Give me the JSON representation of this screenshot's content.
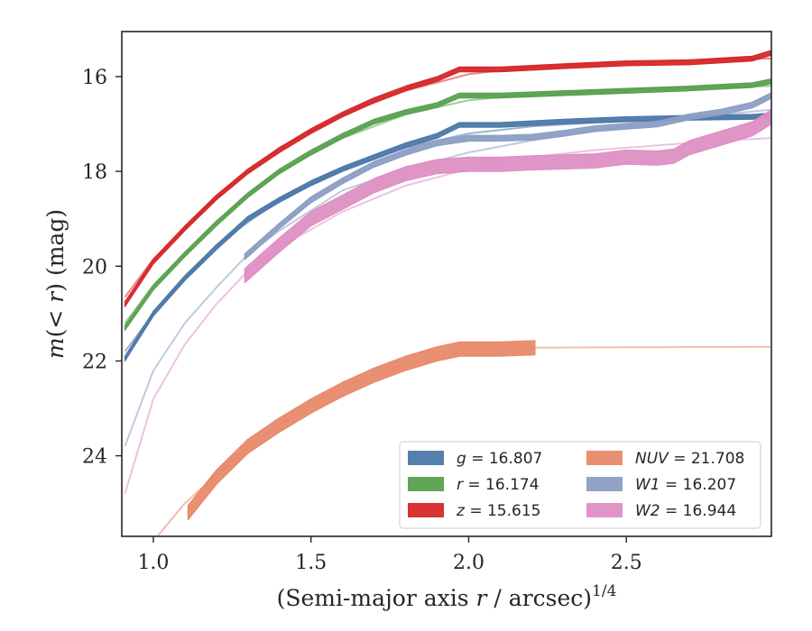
{
  "chart_data": {
    "type": "line",
    "xlabel": "(Semi-major axis r / arcsec)^1/4",
    "ylabel": "m(< r) (mag)",
    "xlim": [
      0.9,
      2.96
    ],
    "ylim": [
      25.7,
      15.05
    ],
    "y_inverted": true,
    "xticks": [
      1.0,
      1.5,
      2.0,
      2.5
    ],
    "xtick_labels": [
      "1.0",
      "1.5",
      "2.0",
      "2.5"
    ],
    "yticks": [
      16,
      18,
      20,
      22,
      24
    ],
    "ytick_labels": [
      "16",
      "18",
      "20",
      "22",
      "24"
    ],
    "grid": false,
    "legend_position": "lower-right",
    "series": [
      {
        "name": "g = 16.807",
        "legend_band": "g",
        "legend_value": "16.807",
        "color": "#4c78a8",
        "band_width": 0.05,
        "x": [
          0.91,
          1.0,
          1.1,
          1.2,
          1.3,
          1.4,
          1.5,
          1.6,
          1.7,
          1.8,
          1.9,
          1.97,
          2.1,
          2.3,
          2.5,
          2.7,
          2.9,
          2.96
        ],
        "y": [
          21.95,
          21.0,
          20.25,
          19.6,
          19.0,
          18.6,
          18.25,
          17.95,
          17.7,
          17.45,
          17.25,
          17.02,
          17.02,
          16.95,
          16.9,
          16.87,
          16.85,
          16.82
        ],
        "model_x": [
          0.91,
          1.0,
          1.2,
          1.4,
          1.6,
          1.8,
          2.0,
          2.2,
          2.4,
          2.6,
          2.8,
          2.96
        ],
        "model_y": [
          21.8,
          21.0,
          19.55,
          18.6,
          17.95,
          17.5,
          17.2,
          17.05,
          16.97,
          16.92,
          16.89,
          16.85
        ]
      },
      {
        "name": "r = 16.174",
        "legend_band": "r",
        "legend_value": "16.174",
        "color": "#59a14f",
        "band_width": 0.05,
        "x": [
          0.91,
          1.0,
          1.1,
          1.2,
          1.3,
          1.4,
          1.5,
          1.6,
          1.7,
          1.8,
          1.9,
          1.97,
          2.1,
          2.3,
          2.5,
          2.7,
          2.9,
          2.96
        ],
        "y": [
          21.3,
          20.45,
          19.75,
          19.1,
          18.5,
          18.0,
          17.6,
          17.25,
          16.95,
          16.75,
          16.6,
          16.4,
          16.4,
          16.35,
          16.3,
          16.25,
          16.18,
          16.1
        ],
        "model_x": [
          0.91,
          1.0,
          1.2,
          1.4,
          1.6,
          1.8,
          2.0,
          2.2,
          2.4,
          2.6,
          2.8,
          2.96
        ],
        "model_y": [
          21.2,
          20.4,
          19.05,
          18.0,
          17.3,
          16.8,
          16.5,
          16.38,
          16.3,
          16.25,
          16.22,
          16.2
        ]
      },
      {
        "name": "z = 15.615",
        "legend_band": "z",
        "legend_value": "15.615",
        "color": "#d62728",
        "band_width": 0.05,
        "x": [
          0.91,
          1.0,
          1.1,
          1.2,
          1.3,
          1.4,
          1.5,
          1.6,
          1.7,
          1.8,
          1.9,
          1.97,
          2.1,
          2.3,
          2.5,
          2.7,
          2.9,
          2.96
        ],
        "y": [
          20.8,
          19.9,
          19.2,
          18.55,
          18.0,
          17.55,
          17.15,
          16.8,
          16.5,
          16.25,
          16.05,
          15.85,
          15.85,
          15.78,
          15.72,
          15.7,
          15.62,
          15.5
        ],
        "model_x": [
          0.91,
          1.0,
          1.2,
          1.4,
          1.6,
          1.8,
          2.0,
          2.2,
          2.4,
          2.6,
          2.8,
          2.96
        ],
        "model_y": [
          20.65,
          19.85,
          18.55,
          17.5,
          16.8,
          16.3,
          15.95,
          15.8,
          15.72,
          15.67,
          15.64,
          15.62
        ]
      },
      {
        "name": "NUV = 21.708",
        "legend_band": "NUV",
        "legend_value": "21.708",
        "color": "#e8896a",
        "band_width": 0.15,
        "x": [
          1.11,
          1.2,
          1.3,
          1.4,
          1.5,
          1.6,
          1.7,
          1.8,
          1.9,
          1.97,
          2.1,
          2.21
        ],
        "y": [
          25.2,
          24.45,
          23.8,
          23.35,
          22.95,
          22.6,
          22.3,
          22.05,
          21.85,
          21.75,
          21.75,
          21.72
        ],
        "model_x": [
          1.0,
          1.1,
          1.2,
          1.3,
          1.4,
          1.5,
          1.6,
          1.8,
          2.0,
          2.2,
          2.5,
          2.96
        ],
        "model_y": [
          25.8,
          25.0,
          24.4,
          23.8,
          23.35,
          22.9,
          22.55,
          22.05,
          21.78,
          21.72,
          21.71,
          21.7
        ]
      },
      {
        "name": "W1 = 16.207",
        "legend_band": "W1",
        "legend_value": "16.207",
        "color": "#8c9ec5",
        "band_width": 0.06,
        "x": [
          1.29,
          1.4,
          1.5,
          1.6,
          1.7,
          1.8,
          1.9,
          2.0,
          2.1,
          2.2,
          2.3,
          2.4,
          2.5,
          2.6,
          2.7,
          2.8,
          2.9,
          2.96
        ],
        "y": [
          19.8,
          19.15,
          18.6,
          18.2,
          17.85,
          17.6,
          17.4,
          17.3,
          17.3,
          17.28,
          17.2,
          17.1,
          17.05,
          17.0,
          16.85,
          16.75,
          16.6,
          16.4
        ],
        "model_x": [
          0.91,
          1.0,
          1.1,
          1.2,
          1.3,
          1.4,
          1.6,
          1.8,
          2.0,
          2.2,
          2.4,
          2.6,
          2.8,
          2.96
        ],
        "model_y": [
          23.8,
          22.2,
          21.2,
          20.45,
          19.75,
          19.25,
          18.4,
          17.95,
          17.6,
          17.35,
          17.15,
          16.95,
          16.8,
          16.7
        ]
      },
      {
        "name": "W2 = 16.944",
        "legend_band": "W2",
        "legend_value": "16.944",
        "color": "#de8fc4",
        "band_width": 0.15,
        "x": [
          1.29,
          1.4,
          1.5,
          1.6,
          1.7,
          1.8,
          1.9,
          2.0,
          2.1,
          2.2,
          2.3,
          2.4,
          2.5,
          2.6,
          2.65,
          2.7,
          2.8,
          2.9,
          2.96
        ],
        "y": [
          20.2,
          19.55,
          19.0,
          18.65,
          18.3,
          18.05,
          17.9,
          17.85,
          17.85,
          17.82,
          17.8,
          17.78,
          17.7,
          17.72,
          17.68,
          17.5,
          17.3,
          17.1,
          16.85
        ],
        "model_x": [
          0.91,
          1.0,
          1.1,
          1.2,
          1.3,
          1.4,
          1.6,
          1.8,
          2.0,
          2.2,
          2.4,
          2.6,
          2.8,
          2.96
        ],
        "model_y": [
          24.8,
          22.8,
          21.65,
          20.8,
          20.1,
          19.6,
          18.85,
          18.3,
          17.95,
          17.7,
          17.55,
          17.45,
          17.35,
          17.3
        ]
      }
    ],
    "legend_order": [
      0,
      1,
      2,
      3,
      4,
      5
    ]
  }
}
